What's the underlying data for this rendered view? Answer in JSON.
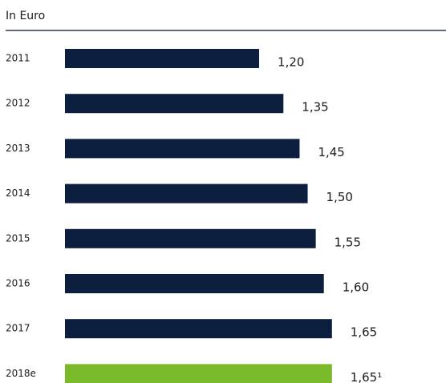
{
  "chart_data": {
    "type": "barh",
    "title": "In Euro",
    "categories": [
      "2011",
      "2012",
      "2013",
      "2014",
      "2015",
      "2016",
      "2017",
      "2018e"
    ],
    "values": [
      1.2,
      1.35,
      1.45,
      1.5,
      1.55,
      1.6,
      1.65,
      1.65
    ],
    "value_labels": [
      "1,20",
      "1,35",
      "1,45",
      "1,50",
      "1,55",
      "1,60",
      "1,65",
      "1,65¹"
    ],
    "colors": [
      "#0d1f3f",
      "#0d1f3f",
      "#0d1f3f",
      "#0d1f3f",
      "#0d1f3f",
      "#0d1f3f",
      "#0d1f3f",
      "#7ab929"
    ]
  }
}
